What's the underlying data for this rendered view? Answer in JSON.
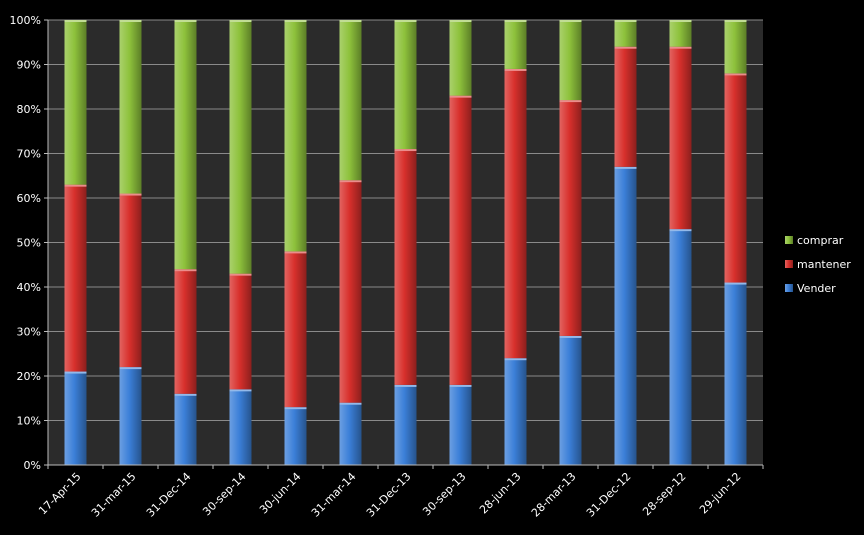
{
  "chart_data": {
    "type": "bar",
    "stacked": true,
    "percent": true,
    "categories": [
      "17-Apr-15",
      "31-mar-15",
      "31-Dec-14",
      "30-sep-14",
      "30-jun-14",
      "31-mar-14",
      "31-Dec-13",
      "30-sep-13",
      "28-jun-13",
      "28-mar-13",
      "31-Dec-12",
      "28-sep-12",
      "29-jun-12"
    ],
    "series": [
      {
        "name": "Vender",
        "color": "#3b7fd8",
        "values": [
          21,
          22,
          16,
          17,
          13,
          14,
          18,
          18,
          24,
          29,
          67,
          53,
          41
        ]
      },
      {
        "name": "mantener",
        "color": "#d8302c",
        "values": [
          42,
          39,
          28,
          26,
          35,
          50,
          53,
          65,
          65,
          53,
          27,
          41,
          47
        ]
      },
      {
        "name": "comprar",
        "color": "#8ec23c",
        "values": [
          37,
          39,
          56,
          57,
          52,
          36,
          29,
          17,
          11,
          18,
          6,
          6,
          12
        ]
      }
    ],
    "ylim": [
      0,
      100
    ],
    "yticks": [
      "0%",
      "10%",
      "20%",
      "30%",
      "40%",
      "50%",
      "60%",
      "70%",
      "80%",
      "90%",
      "100%"
    ],
    "grid": true,
    "legend": "right",
    "legend_order": [
      "comprar",
      "mantener",
      "Vender"
    ],
    "title": "",
    "xlabel": "",
    "ylabel": "",
    "plot_background": "#2b2b2b",
    "grid_color": "#8a8a8a"
  }
}
